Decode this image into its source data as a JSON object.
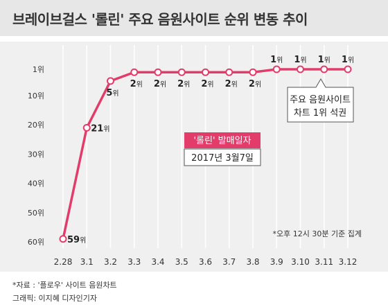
{
  "title": "브레이브걸스 '롤린' 주요 음원사이트 순위 변동 추이",
  "chart_data": {
    "type": "line",
    "categories": [
      "2.28",
      "3.1",
      "3.2",
      "3.3",
      "3.4",
      "3.5",
      "3.6",
      "3.7",
      "3.8",
      "3.9",
      "3.10",
      "3.11",
      "3.12"
    ],
    "series": [
      {
        "values": [
          59,
          21,
          5,
          2,
          2,
          2,
          2,
          2,
          2,
          1,
          1,
          1,
          1
        ]
      }
    ],
    "y_ticks": [
      "1위",
      "10위",
      "20위",
      "30위",
      "40위",
      "50위",
      "60위"
    ],
    "y_tick_values": [
      1,
      10,
      20,
      30,
      40,
      50,
      60
    ],
    "ylim": [
      1,
      60
    ],
    "y_inverted": true,
    "value_suffix": "위",
    "grid": "vertical",
    "line_color": "#e23c6b",
    "annotations": {
      "release_title": "'롤린' 발매일자",
      "release_date": "2017년 3월7일",
      "top_callout_line1": "주요 음원사이트",
      "top_callout_line2": "차트 1위 석권",
      "note": "*오후 12시 30분 기준 집계"
    }
  },
  "footer": {
    "source": "*자료 : '플로우' 사이트 음원차트",
    "credit": "그래픽: 이지혜 디자인기자"
  },
  "colors": {
    "accent": "#e23c6b",
    "panel": "#f0f0f0",
    "header": "#e7e7e7"
  }
}
